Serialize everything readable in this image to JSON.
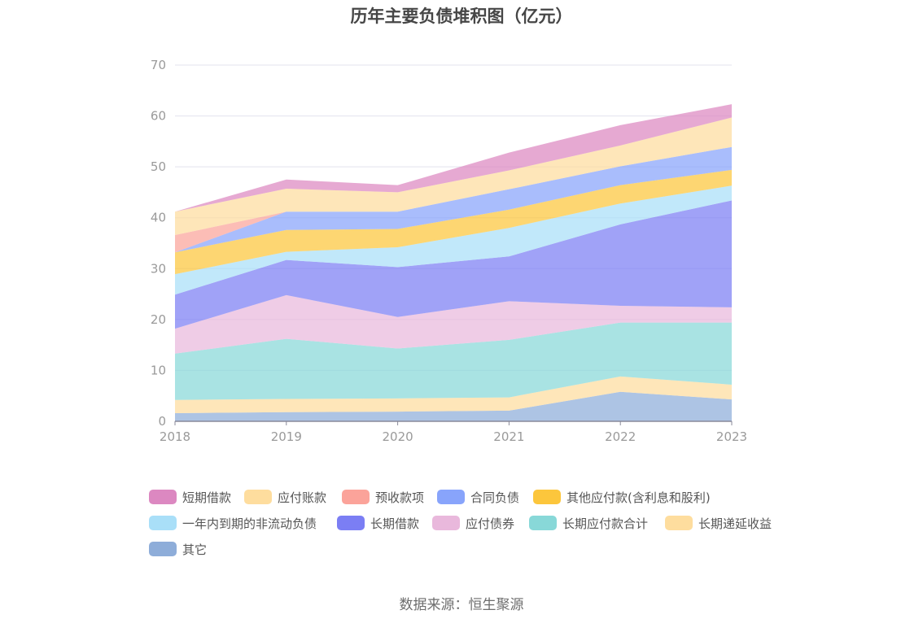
{
  "title": "历年主要负债堆积图（亿元）",
  "source": "数据来源：恒生聚源",
  "chart_data": {
    "type": "area",
    "stacked": true,
    "categories": [
      "2018",
      "2019",
      "2020",
      "2021",
      "2022",
      "2023"
    ],
    "ylim": [
      0,
      70
    ],
    "yticks": [
      0,
      10,
      20,
      30,
      40,
      50,
      60,
      70
    ],
    "grid": true,
    "legend_position": "bottom",
    "series": [
      {
        "name": "其它",
        "color": "#8eadd9",
        "values": [
          1.6,
          1.8,
          1.9,
          2.1,
          5.8,
          4.3
        ]
      },
      {
        "name": "长期递延收益",
        "color": "#fedd9e",
        "values": [
          2.6,
          2.6,
          2.6,
          2.6,
          3.0,
          2.9
        ]
      },
      {
        "name": "长期应付款合计",
        "color": "#88d8d8",
        "values": [
          9.1,
          11.8,
          9.8,
          11.3,
          10.6,
          12.2
        ]
      },
      {
        "name": "应付债券",
        "color": "#e9b8dc",
        "values": [
          4.9,
          8.6,
          6.2,
          7.6,
          3.3,
          3.0
        ]
      },
      {
        "name": "长期借款",
        "color": "#7b7ef4",
        "values": [
          6.7,
          6.9,
          9.8,
          8.8,
          16.0,
          21.0
        ]
      },
      {
        "name": "一年内到期的非流动负债",
        "color": "#a9dff8",
        "values": [
          4.0,
          1.6,
          3.9,
          5.6,
          4.1,
          2.9
        ]
      },
      {
        "name": "其他应付款(含利息和股利)",
        "color": "#fcc63c",
        "values": [
          4.3,
          4.3,
          3.6,
          3.6,
          3.6,
          3.1
        ]
      },
      {
        "name": "合同负债",
        "color": "#88a4fb",
        "values": [
          0.0,
          3.6,
          3.4,
          4.0,
          3.7,
          4.5
        ]
      },
      {
        "name": "预收款项",
        "color": "#fba39a",
        "values": [
          3.4,
          0.0,
          0.0,
          0.0,
          0.0,
          0.0
        ]
      },
      {
        "name": "应付账款",
        "color": "#fedd9e",
        "values": [
          4.6,
          4.5,
          3.8,
          3.7,
          4.1,
          5.8
        ]
      },
      {
        "name": "短期借款",
        "color": "#dc88c1",
        "values": [
          0.0,
          1.8,
          1.4,
          3.5,
          4.0,
          2.6
        ]
      }
    ]
  },
  "legend": [
    {
      "label": "短期借款",
      "color": "#dc88c1"
    },
    {
      "label": "应付账款",
      "color": "#fedd9e"
    },
    {
      "label": "预收款项",
      "color": "#fba39a"
    },
    {
      "label": "合同负债",
      "color": "#88a4fb"
    },
    {
      "label": "其他应付款(含利息和股利)",
      "color": "#fcc63c"
    },
    {
      "label": "一年内到期的非流动负债",
      "color": "#a9dff8"
    },
    {
      "label": "长期借款",
      "color": "#7b7ef4"
    },
    {
      "label": "应付债券",
      "color": "#e9b8dc"
    },
    {
      "label": "长期应付款合计",
      "color": "#88d8d8"
    },
    {
      "label": "长期递延收益",
      "color": "#fedd9e"
    },
    {
      "label": "其它",
      "color": "#8eadd9"
    }
  ]
}
